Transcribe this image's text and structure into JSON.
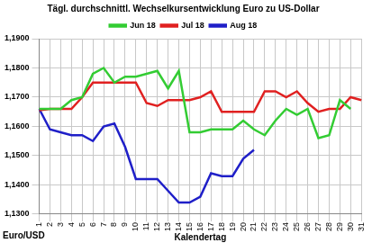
{
  "chart_data": {
    "type": "line",
    "title": "Tägl. durchschnittl. Wechselkursentwicklung Euro zu US-Dollar",
    "x_label": "Kalendertag",
    "y_label": "Euro/USD",
    "categories": [
      "1",
      "2",
      "3",
      "4",
      "5",
      "6",
      "7",
      "8",
      "9",
      "10",
      "11",
      "12",
      "13",
      "14",
      "15",
      "16",
      "17",
      "18",
      "19",
      "20",
      "21",
      "22",
      "23",
      "24",
      "25",
      "26",
      "27",
      "28",
      "29",
      "30",
      "31"
    ],
    "series": [
      {
        "name": "Jun 18",
        "color": "#33cc33",
        "values": [
          1.166,
          1.166,
          1.166,
          1.169,
          1.17,
          1.178,
          1.18,
          1.175,
          1.177,
          1.177,
          1.178,
          1.179,
          1.173,
          1.179,
          1.158,
          1.158,
          1.159,
          1.159,
          1.159,
          1.162,
          1.159,
          1.157,
          1.162,
          1.166,
          1.164,
          1.166,
          1.156,
          1.157,
          1.169,
          1.166,
          null
        ]
      },
      {
        "name": "Jul 18",
        "color": "#e02020",
        "values": [
          1.1655,
          1.166,
          1.166,
          1.166,
          1.17,
          1.175,
          1.175,
          1.175,
          1.175,
          1.175,
          1.168,
          1.167,
          1.169,
          1.169,
          1.169,
          1.17,
          1.172,
          1.165,
          1.165,
          1.165,
          1.165,
          1.172,
          1.172,
          1.17,
          1.172,
          1.168,
          1.165,
          1.166,
          1.166,
          1.17,
          1.169
        ]
      },
      {
        "name": "Aug 18",
        "color": "#1f1fc8",
        "values": [
          1.166,
          1.159,
          1.158,
          1.157,
          1.157,
          1.155,
          1.16,
          1.161,
          1.153,
          1.142,
          1.142,
          1.142,
          1.138,
          1.134,
          1.134,
          1.136,
          1.144,
          1.143,
          1.143,
          1.149,
          1.152,
          null,
          null,
          null,
          null,
          null,
          null,
          null,
          null,
          null,
          null
        ]
      }
    ],
    "ylim": [
      1.13,
      1.19
    ],
    "yticks": [
      {
        "value": 1.13,
        "label": "1,1300"
      },
      {
        "value": 1.14,
        "label": "1,1400"
      },
      {
        "value": 1.15,
        "label": "1,1500"
      },
      {
        "value": 1.16,
        "label": "1,1600"
      },
      {
        "value": 1.17,
        "label": "1,1700"
      },
      {
        "value": 1.18,
        "label": "1,1800"
      },
      {
        "value": 1.19,
        "label": "1,1900"
      }
    ],
    "grid": true,
    "legend": "top"
  }
}
